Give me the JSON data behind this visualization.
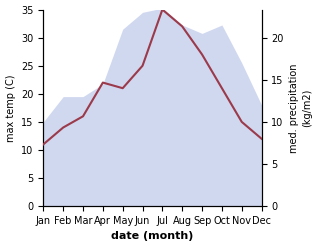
{
  "months": [
    "Jan",
    "Feb",
    "Mar",
    "Apr",
    "May",
    "Jun",
    "Jul",
    "Aug",
    "Sep",
    "Oct",
    "Nov",
    "Dec"
  ],
  "temp": [
    11,
    14,
    16,
    22,
    21,
    25,
    35,
    32,
    27,
    21,
    15,
    12
  ],
  "precip": [
    10,
    13,
    13,
    14.5,
    21,
    23,
    23.5,
    21.5,
    20.5,
    21.5,
    17,
    12
  ],
  "temp_color": "#9b3a4a",
  "precip_fill_color": "#b8c4e8",
  "xlabel": "date (month)",
  "ylabel_left": "max temp (C)",
  "ylabel_right": "med. precipitation\n(kg/m2)",
  "ylim_left": [
    0,
    35
  ],
  "ylim_right": [
    0,
    23.33
  ],
  "yticks_left": [
    0,
    5,
    10,
    15,
    20,
    25,
    30,
    35
  ],
  "yticks_right": [
    0,
    5,
    10,
    15,
    20
  ],
  "bg_color": "#ffffff"
}
